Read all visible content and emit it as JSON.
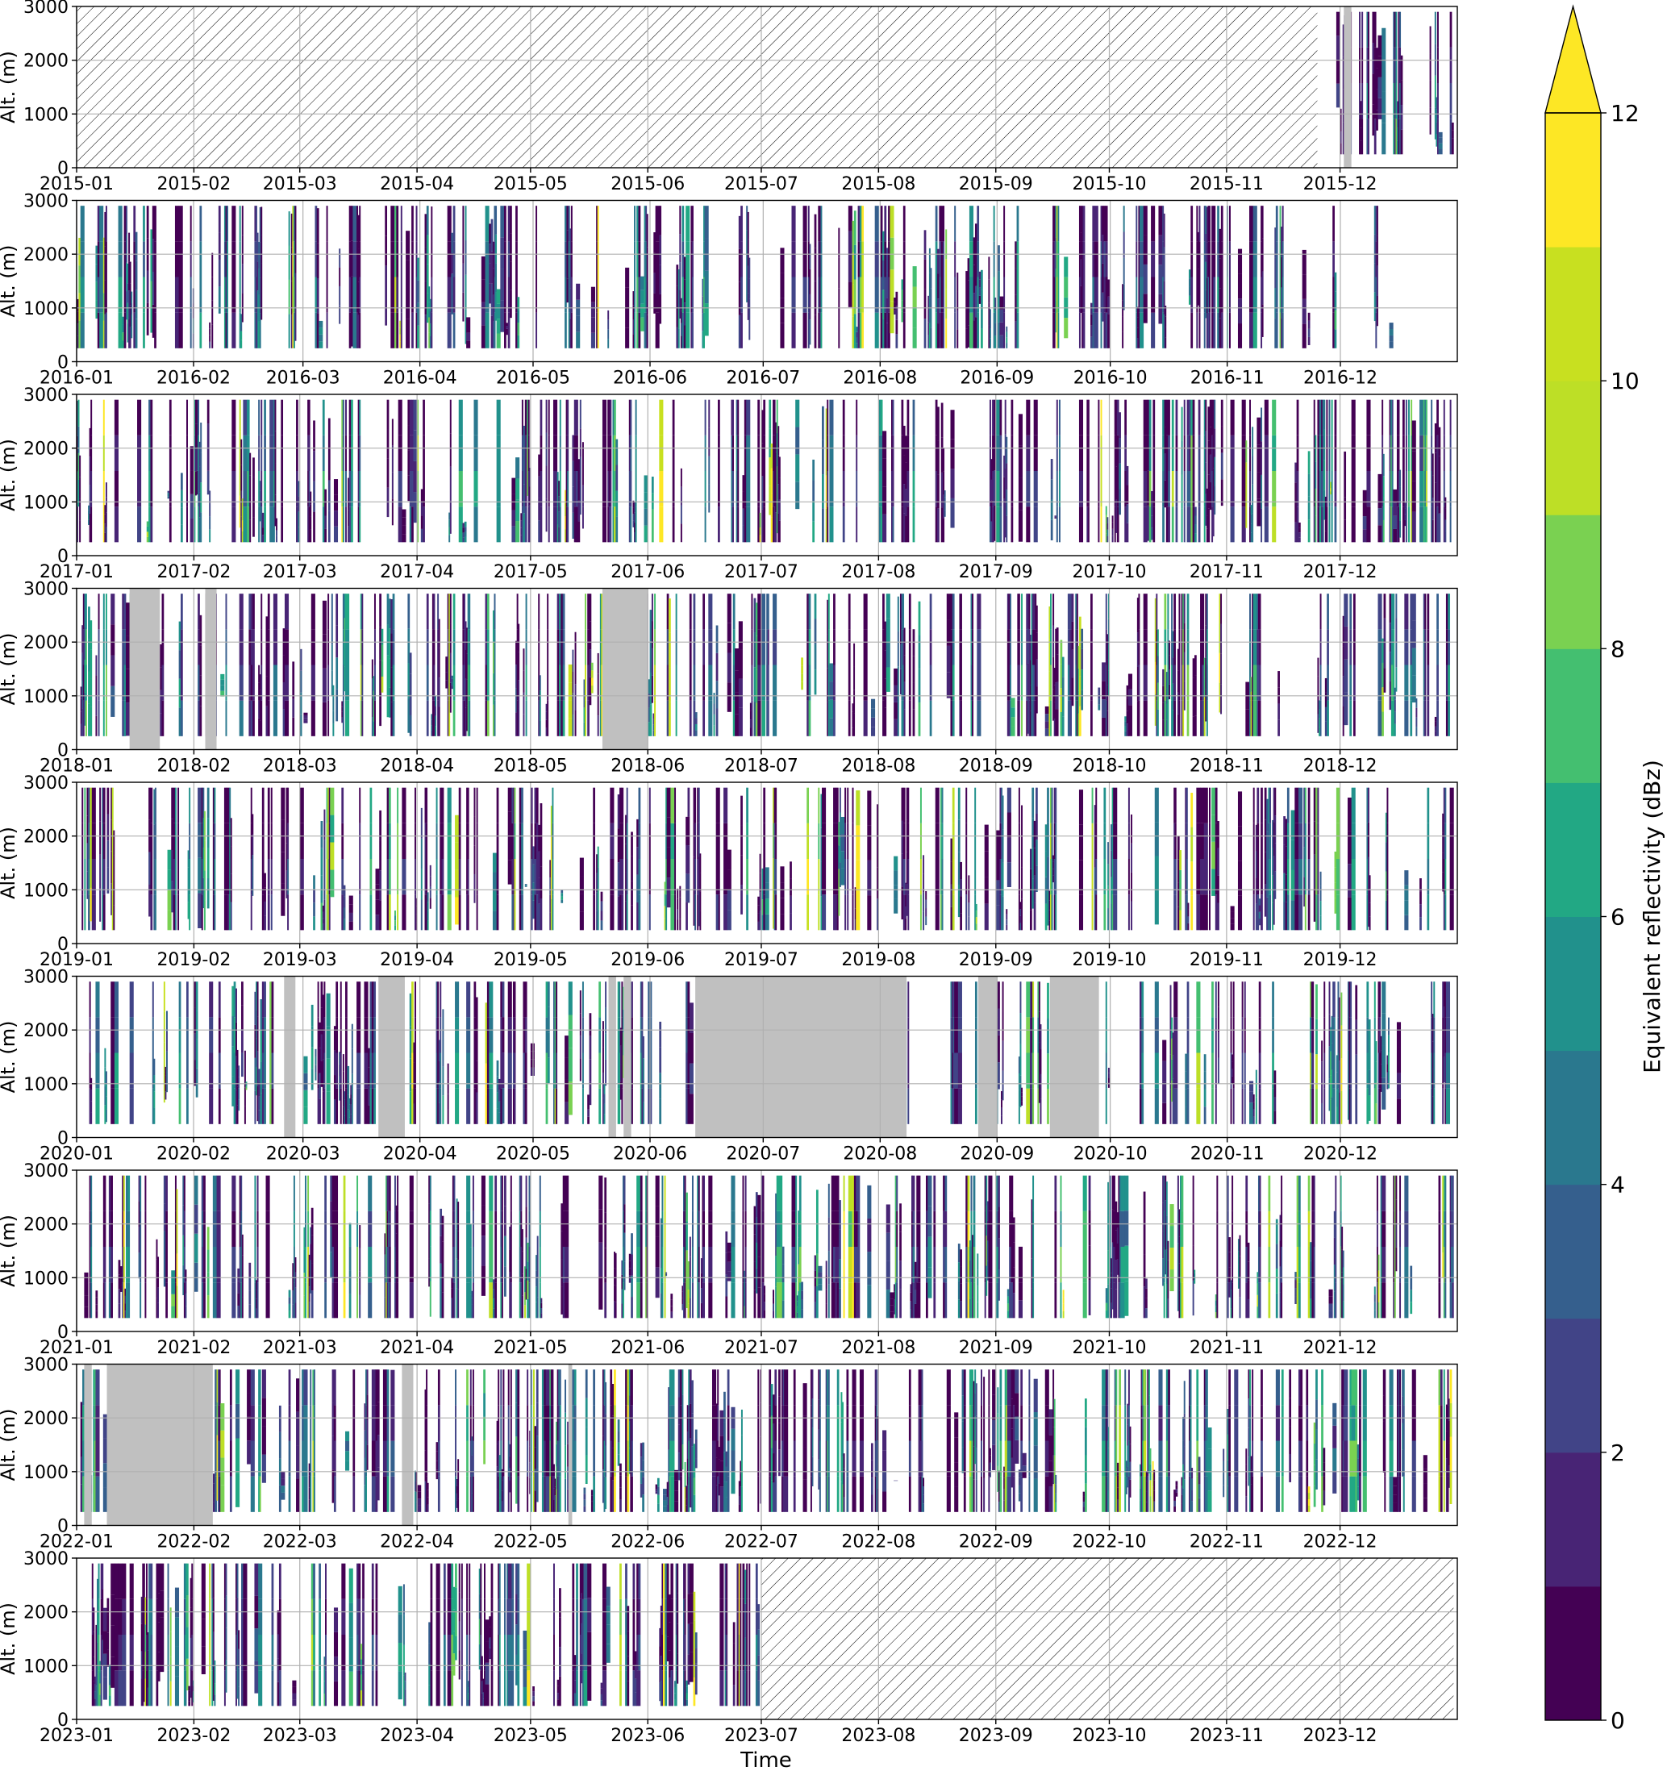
{
  "chart_data": {
    "type": "heatmap",
    "xlabel": "Time",
    "ylabel": "Alt. (m)",
    "ylim": [
      0,
      3000
    ],
    "y_ticks": [
      0,
      1000,
      2000,
      3000
    ],
    "grid": true,
    "colorbar": {
      "label": "Equivalent reflectivity (dBz)",
      "ticks": [
        0,
        2,
        4,
        6,
        8,
        10,
        12
      ],
      "range": [
        0,
        12
      ],
      "extend": "max",
      "levels": 12,
      "colors": [
        "#440154",
        "#482475",
        "#414487",
        "#355f8d",
        "#2a788e",
        "#21918c",
        "#22a884",
        "#44bf70",
        "#7ad151",
        "#bddf26",
        "#c8e020",
        "#fde725"
      ],
      "over_color": "#fde725"
    },
    "legend_colors": {
      "no_data": "#c0c0c0",
      "not_operating_hatch": "#000000"
    },
    "panels": [
      {
        "year": "2015",
        "x_ticks": [
          "2015-01",
          "2015-02",
          "2015-03",
          "2015-04",
          "2015-05",
          "2015-06",
          "2015-07",
          "2015-08",
          "2015-09",
          "2015-10",
          "2015-11",
          "2015-12"
        ],
        "hatch": [
          [
            "2015-01-01",
            "2015-11-25"
          ]
        ],
        "gray": [
          [
            "2015-12-02",
            "2015-12-04"
          ]
        ],
        "activity": 0.45,
        "active_ranges": [
          [
            "2015-11-25",
            "2015-12-31"
          ]
        ]
      },
      {
        "year": "2016",
        "x_ticks": [
          "2016-01",
          "2016-02",
          "2016-03",
          "2016-04",
          "2016-05",
          "2016-06",
          "2016-07",
          "2016-08",
          "2016-09",
          "2016-10",
          "2016-11",
          "2016-12"
        ],
        "hatch": [],
        "gray": [],
        "activity": 0.5,
        "active_ranges": [
          [
            "2016-01-01",
            "2016-12-15"
          ]
        ]
      },
      {
        "year": "2017",
        "x_ticks": [
          "2017-01",
          "2017-02",
          "2017-03",
          "2017-04",
          "2017-05",
          "2017-06",
          "2017-07",
          "2017-08",
          "2017-09",
          "2017-10",
          "2017-11",
          "2017-12"
        ],
        "hatch": [],
        "gray": [],
        "activity": 0.55,
        "active_ranges": [
          [
            "2017-01-01",
            "2017-12-31"
          ]
        ]
      },
      {
        "year": "2018",
        "x_ticks": [
          "2018-01",
          "2018-02",
          "2018-03",
          "2018-04",
          "2018-05",
          "2018-06",
          "2018-07",
          "2018-08",
          "2018-09",
          "2018-10",
          "2018-11",
          "2018-12"
        ],
        "hatch": [],
        "gray": [
          [
            "2018-01-15",
            "2018-01-23"
          ],
          [
            "2018-02-04",
            "2018-02-07"
          ],
          [
            "2018-05-20",
            "2018-06-01"
          ]
        ],
        "activity": 0.5,
        "active_ranges": [
          [
            "2018-01-01",
            "2018-12-31"
          ]
        ]
      },
      {
        "year": "2019",
        "x_ticks": [
          "2019-01",
          "2019-02",
          "2019-03",
          "2019-04",
          "2019-05",
          "2019-06",
          "2019-07",
          "2019-08",
          "2019-09",
          "2019-10",
          "2019-11",
          "2019-12"
        ],
        "hatch": [],
        "gray": [],
        "activity": 0.5,
        "active_ranges": [
          [
            "2019-01-01",
            "2019-12-31"
          ]
        ]
      },
      {
        "year": "2020",
        "x_ticks": [
          "2020-01",
          "2020-02",
          "2020-03",
          "2020-04",
          "2020-05",
          "2020-06",
          "2020-07",
          "2020-08",
          "2020-09",
          "2020-10",
          "2020-11",
          "2020-12"
        ],
        "hatch": [],
        "gray": [
          [
            "2020-02-25",
            "2020-02-28"
          ],
          [
            "2020-03-21",
            "2020-03-28"
          ],
          [
            "2020-05-21",
            "2020-05-23"
          ],
          [
            "2020-05-25",
            "2020-05-27"
          ],
          [
            "2020-06-13",
            "2020-08-08"
          ],
          [
            "2020-08-27",
            "2020-09-01"
          ],
          [
            "2020-09-15",
            "2020-09-28"
          ]
        ],
        "activity": 0.5,
        "active_ranges": [
          [
            "2020-01-01",
            "2020-12-31"
          ]
        ]
      },
      {
        "year": "2021",
        "x_ticks": [
          "2021-01",
          "2021-02",
          "2021-03",
          "2021-04",
          "2021-05",
          "2021-06",
          "2021-07",
          "2021-08",
          "2021-09",
          "2021-10",
          "2021-11",
          "2021-12"
        ],
        "hatch": [],
        "gray": [],
        "activity": 0.5,
        "active_ranges": [
          [
            "2021-01-01",
            "2021-12-31"
          ]
        ]
      },
      {
        "year": "2022",
        "x_ticks": [
          "2022-01",
          "2022-02",
          "2022-03",
          "2022-04",
          "2022-05",
          "2022-06",
          "2022-07",
          "2022-08",
          "2022-09",
          "2022-10",
          "2022-11",
          "2022-12"
        ],
        "hatch": [],
        "gray": [
          [
            "2022-01-03",
            "2022-01-05"
          ],
          [
            "2022-01-09",
            "2022-02-06"
          ],
          [
            "2022-03-28",
            "2022-03-31"
          ],
          [
            "2022-05-11",
            "2022-05-12"
          ]
        ],
        "activity": 0.55,
        "active_ranges": [
          [
            "2022-01-01",
            "2022-12-31"
          ]
        ]
      },
      {
        "year": "2023",
        "x_ticks": [
          "2023-01",
          "2023-02",
          "2023-03",
          "2023-04",
          "2023-05",
          "2023-06",
          "2023-07",
          "2023-08",
          "2023-09",
          "2023-10",
          "2023-11",
          "2023-12"
        ],
        "hatch": [
          [
            "2023-07-01",
            "2023-12-31"
          ]
        ],
        "gray": [],
        "activity": 0.5,
        "active_ranges": [
          [
            "2023-01-01",
            "2023-07-01"
          ]
        ]
      }
    ]
  }
}
